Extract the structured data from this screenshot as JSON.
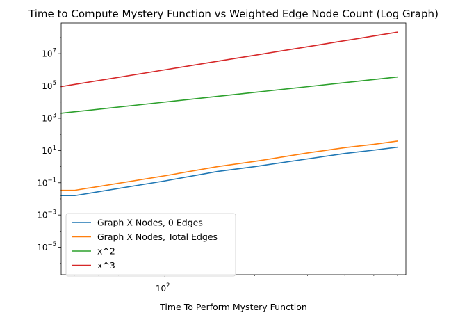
{
  "chart_data": {
    "type": "line",
    "title": "Time to Compute Mystery Function vs Weighted Edge Node Count (Log Graph)",
    "xlabel": "Time To Perform Mystery Function",
    "ylabel": "",
    "x_scale": "log",
    "y_scale": "log",
    "xlim": [
      45,
      640
    ],
    "ylim": [
      2e-07,
      800000000.0
    ],
    "x_ticks": [
      {
        "value": 100,
        "label": "10",
        "exp": "2"
      }
    ],
    "y_ticks": [
      {
        "value": 1e-05,
        "label": "10",
        "exp": "−5"
      },
      {
        "value": 0.001,
        "label": "10",
        "exp": "−3"
      },
      {
        "value": 0.1,
        "label": "10",
        "exp": "−1"
      },
      {
        "value": 10.0,
        "label": "10",
        "exp": "1"
      },
      {
        "value": 1000.0,
        "label": "10",
        "exp": "3"
      },
      {
        "value": 100000.0,
        "label": "10",
        "exp": "5"
      },
      {
        "value": 10000000.0,
        "label": "10",
        "exp": "7"
      }
    ],
    "grid": false,
    "legend_position": "lower-left",
    "series": [
      {
        "name": "Graph X Nodes, 0 Edges",
        "color": "#1f77b4",
        "x": [
          45,
          50,
          100,
          150,
          200,
          300,
          400,
          500,
          600
        ],
        "y": [
          0.016,
          0.016,
          0.13,
          0.5,
          1.0,
          3.0,
          6.5,
          10.5,
          16.0
        ]
      },
      {
        "name": "Graph X Nodes, Total Edges",
        "color": "#ff7f0e",
        "x": [
          45,
          50,
          100,
          150,
          200,
          300,
          400,
          500,
          600
        ],
        "y": [
          0.034,
          0.034,
          0.27,
          1.0,
          2.1,
          7.0,
          15.0,
          24.0,
          38.0
        ]
      },
      {
        "name": "x^2",
        "color": "#2ca02c",
        "x": [
          45,
          50,
          100,
          150,
          200,
          300,
          400,
          500,
          600
        ],
        "y": [
          2025,
          2500,
          10000,
          22500,
          40000,
          90000,
          160000,
          250000,
          360000
        ]
      },
      {
        "name": "x^3",
        "color": "#d62728",
        "x": [
          45,
          50,
          100,
          150,
          200,
          300,
          400,
          500,
          600
        ],
        "y": [
          91125,
          125000,
          1000000,
          3375000,
          8000000,
          27000000,
          64000000,
          125000000,
          216000000
        ]
      }
    ]
  }
}
